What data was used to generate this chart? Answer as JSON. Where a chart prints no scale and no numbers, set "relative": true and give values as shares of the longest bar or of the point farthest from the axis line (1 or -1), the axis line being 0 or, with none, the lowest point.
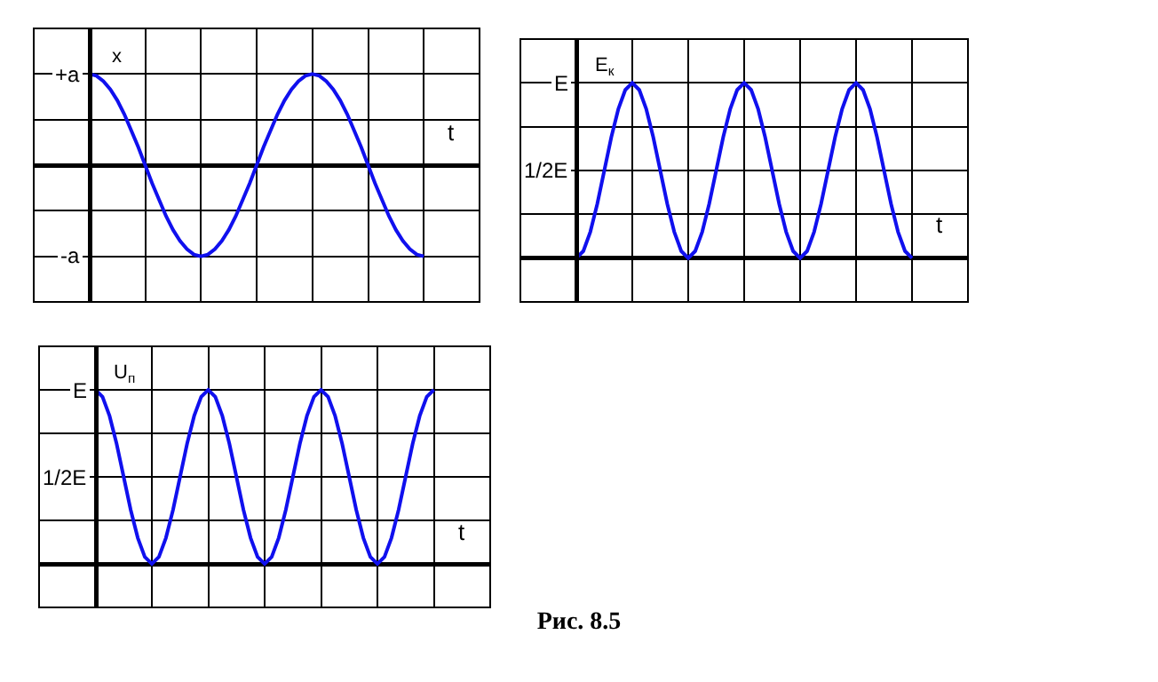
{
  "chart_data": [
    {
      "type": "line",
      "ylabel": "x",
      "xlabel": "t",
      "categories": [
        null,
        null,
        null,
        null,
        null,
        null,
        null,
        null,
        null,
        null,
        null,
        null,
        null,
        null,
        null,
        null,
        null,
        null,
        null,
        null,
        null,
        null,
        null,
        null,
        null,
        null,
        null,
        null,
        null,
        null,
        null,
        null,
        null,
        null,
        null,
        null,
        null,
        null,
        null,
        null,
        null,
        null,
        null,
        null,
        null,
        null,
        null,
        null,
        null,
        null,
        null,
        null,
        null,
        null,
        null,
        null,
        null,
        null,
        null,
        null,
        null,
        null,
        null,
        null,
        null
      ],
      "series": [
        {
          "color": "#1010ee",
          "values": [
            null,
            null,
            null,
            null,
            null,
            null,
            null,
            null,
            1,
            0.98,
            0.92,
            0.83,
            0.71,
            0.56,
            0.38,
            0.2,
            0,
            -0.2,
            -0.38,
            -0.56,
            -0.71,
            -0.83,
            -0.92,
            -0.98,
            -1,
            -0.98,
            -0.92,
            -0.83,
            -0.71,
            -0.56,
            -0.38,
            -0.2,
            0,
            0.2,
            0.38,
            0.56,
            0.71,
            0.83,
            0.92,
            0.98,
            1,
            0.98,
            0.92,
            0.83,
            0.71,
            0.56,
            0.38,
            0.2,
            0,
            -0.2,
            -0.38,
            -0.56,
            -0.71,
            -0.83,
            -0.92,
            -0.98,
            -1,
            null,
            null,
            null,
            null,
            null,
            null,
            null,
            null
          ]
        }
      ],
      "relative": true,
      "annotations": [
        {
          "text": "+a",
          "y": 1
        },
        {
          "text": "-a",
          "y": -1
        }
      ],
      "grid": true,
      "marker": "none",
      "line_style": "solid"
    },
    {
      "type": "line",
      "ylabel": "E$_{к}$",
      "xlabel": "t",
      "categories": [
        null,
        null,
        null,
        null,
        null,
        null,
        null,
        null,
        null,
        null,
        null,
        null,
        null,
        null,
        null,
        null,
        null,
        null,
        null,
        null,
        null,
        null,
        null,
        null,
        null,
        null,
        null,
        null,
        null,
        null,
        null,
        null,
        null,
        null,
        null,
        null,
        null,
        null,
        null,
        null,
        null,
        null,
        null,
        null,
        null,
        null,
        null,
        null,
        null,
        null,
        null,
        null,
        null,
        null,
        null,
        null,
        null,
        null,
        null,
        null,
        null,
        null,
        null,
        null,
        null
      ],
      "relative": true,
      "annotations": [
        {
          "text": "E",
          "y": 1
        },
        {
          "text": "1/2E",
          "y": 0.5
        }
      ],
      "series": [
        {
          "color": "#1010ee",
          "values": [
            null,
            null,
            null,
            null,
            null,
            null,
            null,
            null,
            0,
            0.04,
            0.15,
            0.31,
            0.5,
            0.69,
            0.85,
            0.96,
            1,
            0.96,
            0.85,
            0.69,
            0.5,
            0.31,
            0.15,
            0.04,
            0,
            0.04,
            0.15,
            0.31,
            0.5,
            0.69,
            0.85,
            0.96,
            1,
            0.96,
            0.85,
            0.69,
            0.5,
            0.31,
            0.15,
            0.04,
            0,
            0.04,
            0.15,
            0.31,
            0.5,
            0.69,
            0.85,
            0.96,
            1,
            0.96,
            0.85,
            0.69,
            0.5,
            0.31,
            0.15,
            0.04,
            0,
            null,
            null,
            null,
            null,
            null,
            null,
            null,
            null
          ]
        }
      ],
      "grid": true,
      "marker": "none",
      "line_style": "solid"
    },
    {
      "type": "line",
      "ylabel": "U$_{п}$",
      "xlabel": "t",
      "relative": true,
      "annotations": [
        {
          "text": "E",
          "y": 1
        },
        {
          "text": "1/2E",
          "y": 0.5
        },
        "Рис. 8.5"
      ],
      "categories": [
        null,
        null,
        null,
        null,
        null,
        null,
        null,
        null,
        null,
        null,
        null,
        null,
        null,
        null,
        null,
        null,
        null,
        null,
        null,
        null,
        null,
        null,
        null,
        null,
        null,
        null,
        null,
        null,
        null,
        null,
        null,
        null,
        null,
        null,
        null,
        null,
        null,
        null,
        null,
        null,
        null,
        null,
        null,
        null,
        null,
        null,
        null,
        null,
        null,
        null,
        null,
        null,
        null,
        null,
        null,
        null,
        null,
        null,
        null,
        null,
        null,
        null,
        null,
        null,
        null
      ],
      "series": [
        {
          "color": "#1010ee",
          "values": [
            null,
            null,
            null,
            null,
            null,
            null,
            null,
            null,
            1,
            0.96,
            0.85,
            0.69,
            0.5,
            0.31,
            0.15,
            0.04,
            0,
            0.04,
            0.15,
            0.31,
            0.5,
            0.69,
            0.85,
            0.96,
            1,
            0.96,
            0.85,
            0.69,
            0.5,
            0.31,
            0.15,
            0.04,
            0,
            0.04,
            0.15,
            0.31,
            0.5,
            0.69,
            0.85,
            0.96,
            1,
            0.96,
            0.85,
            0.69,
            0.5,
            0.31,
            0.15,
            0.04,
            0,
            0.04,
            0.15,
            0.31,
            0.5,
            0.69,
            0.85,
            0.96,
            1,
            null,
            null,
            null,
            null,
            null,
            null,
            null,
            null
          ]
        }
      ],
      "grid": true,
      "marker": "none",
      "line_style": "solid"
    }
  ]
}
